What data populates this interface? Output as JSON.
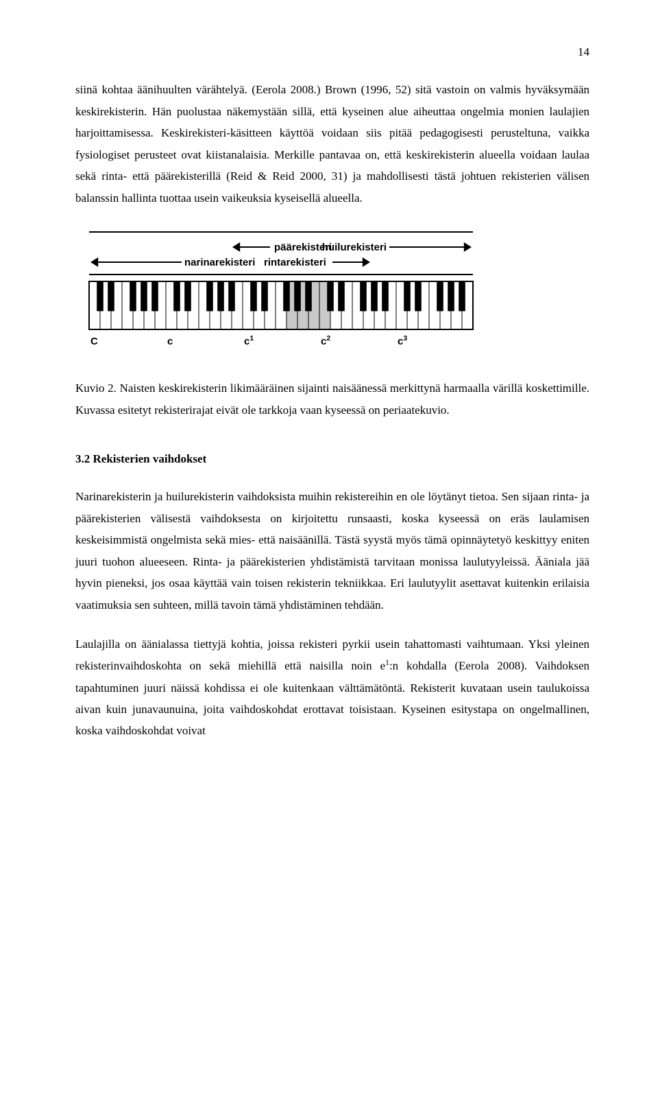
{
  "page_number": "14",
  "para1": "siinä kohtaa äänihuulten värähtelyä. (Eerola 2008.) Brown (1996, 52) sitä vastoin on valmis hyväksymään keskirekisterin. Hän puolustaa näkemystään sillä, että kyseinen alue aiheuttaa ongelmia monien laulajien harjoittamisessa. Keskirekisteri-käsitteen käyttöä voidaan siis pitää pedagogisesti perusteltuna, vaikka fysiologiset perusteet ovat kiistanalaisia. Merkille pantavaa on, että keskirekisterin alueella voidaan laulaa sekä rinta- että päärekisterillä (Reid & Reid 2000, 31) ja mahdollisesti tästä johtuen rekisterien välisen balanssin hallinta tuottaa usein vaikeuksia kyseisellä alueella.",
  "figure": {
    "labels": {
      "narina": "narinarekisteri",
      "paa": "päärekisteri",
      "rinta": "rintarekisteri",
      "huilu": "huilurekisteri"
    },
    "tick_labels": [
      "C",
      "c",
      "c",
      "c",
      "c"
    ],
    "tick_sups": [
      "",
      "",
      "1",
      "2",
      "3"
    ],
    "highlight_start_white_index": 18,
    "highlight_count": 4,
    "colors": {
      "white_key": "#ffffff",
      "black_key": "#000000",
      "border": "#000000",
      "highlight": "#c9c9c9",
      "text": "#000000"
    },
    "font": {
      "label_size": 15,
      "label_weight": "bold",
      "tick_size": 15,
      "tick_weight": "bold"
    }
  },
  "caption": "Kuvio 2. Naisten keskirekisterin likimääräinen sijainti naisäänessä merkittynä harmaalla värillä koskettimille. Kuvassa esitetyt rekisterirajat eivät ole tarkkoja vaan kyseessä on periaatekuvio.",
  "section_heading": "3.2 Rekisterien vaihdokset",
  "para2": "Narinarekisterin ja huilurekisterin vaihdoksista muihin rekistereihin en ole löytänyt tietoa. Sen sijaan rinta- ja päärekisterien välisestä vaihdoksesta on kirjoitettu runsaasti, koska kyseessä on eräs laulamisen keskeisimmistä ongelmista sekä mies- että naisäänillä. Tästä syystä myös tämä opinnäytetyö keskittyy eniten juuri tuohon alueeseen. Rinta- ja päärekisterien yhdistämistä tarvitaan monissa laulutyyleissä. Ääniala jää hyvin pieneksi, jos osaa käyttää vain toisen rekisterin tekniikkaa. Eri laulutyylit asettavat kuitenkin erilaisia vaatimuksia sen suhteen, millä tavoin tämä yhdistäminen tehdään.",
  "para3_pre": "Laulajilla on äänialassa tiettyjä kohtia, joissa rekisteri pyrkii usein tahattomasti vaihtumaan. Yksi yleinen rekisterinvaihdoskohta on sekä miehillä että naisilla noin e",
  "para3_sup": "1",
  "para3_post": ":n kohdalla (Eerola 2008). Vaihdoksen tapahtuminen juuri näissä kohdissa ei ole kuitenkaan välttämätöntä. Rekisterit kuvataan usein taulukoissa aivan kuin junavaunuina, joita vaihdoskohdat erottavat toisistaan. Kyseinen esitystapa on ongelmallinen, koska vaihdoskohdat voivat"
}
